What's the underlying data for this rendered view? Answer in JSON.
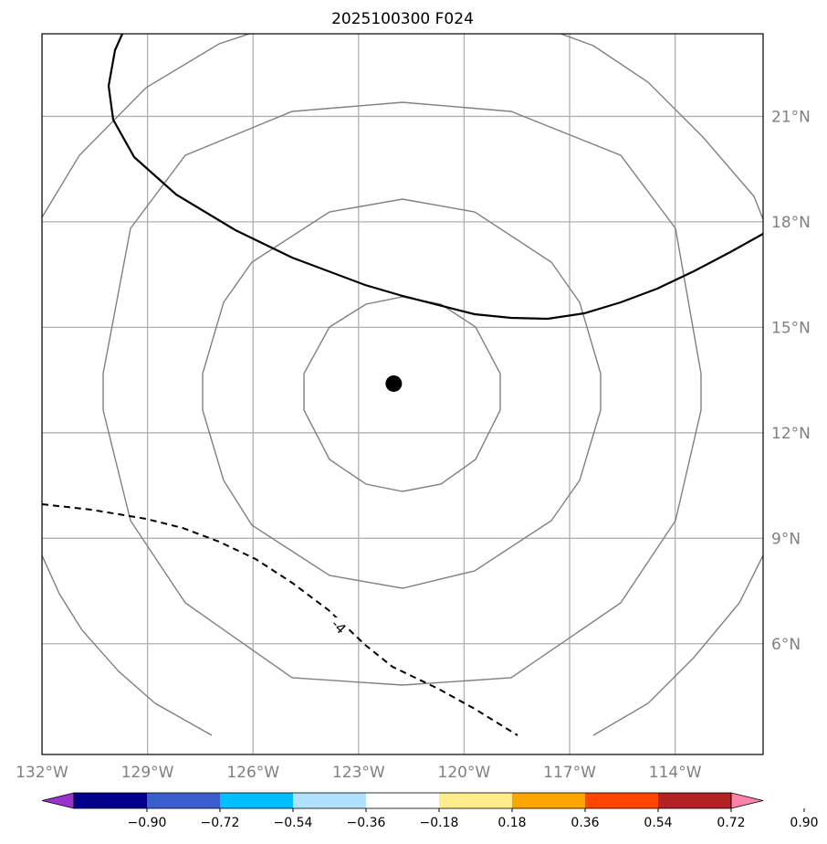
{
  "title": "2025100300 F024",
  "map": {
    "lon_range": [
      -132,
      -111.5
    ],
    "lat_range": [
      2.85,
      23.35
    ],
    "lon_ticks": [
      {
        "value": -132,
        "label": "132°W"
      },
      {
        "value": -129,
        "label": "129°W"
      },
      {
        "value": -126,
        "label": "126°W"
      },
      {
        "value": -123,
        "label": "123°W"
      },
      {
        "value": -120,
        "label": "120°W"
      },
      {
        "value": -117,
        "label": "117°W"
      },
      {
        "value": -114,
        "label": "114°W"
      }
    ],
    "lat_ticks": [
      {
        "value": 21,
        "label": "21°N"
      },
      {
        "value": 18,
        "label": "18°N"
      },
      {
        "value": 15,
        "label": "15°N"
      },
      {
        "value": 12,
        "label": "12°N"
      },
      {
        "value": 9,
        "label": "9°N"
      },
      {
        "value": 6,
        "label": "6°N"
      }
    ],
    "center": {
      "lon": -122.0,
      "lat": 13.4
    },
    "contour_label": "-4"
  },
  "colorbar": {
    "colors": [
      "#9933cc",
      "#00008b",
      "#3a5fcd",
      "#00bfff",
      "#b0e2ff",
      "#ffffff",
      "#ffec8b",
      "#ffa500",
      "#ff4500",
      "#b22222",
      "#ff82ab"
    ],
    "tick_labels": [
      "−0.90",
      "−0.72",
      "−0.54",
      "−0.36",
      "−0.18",
      "0.18",
      "0.36",
      "0.54",
      "0.72",
      "0.90"
    ]
  }
}
